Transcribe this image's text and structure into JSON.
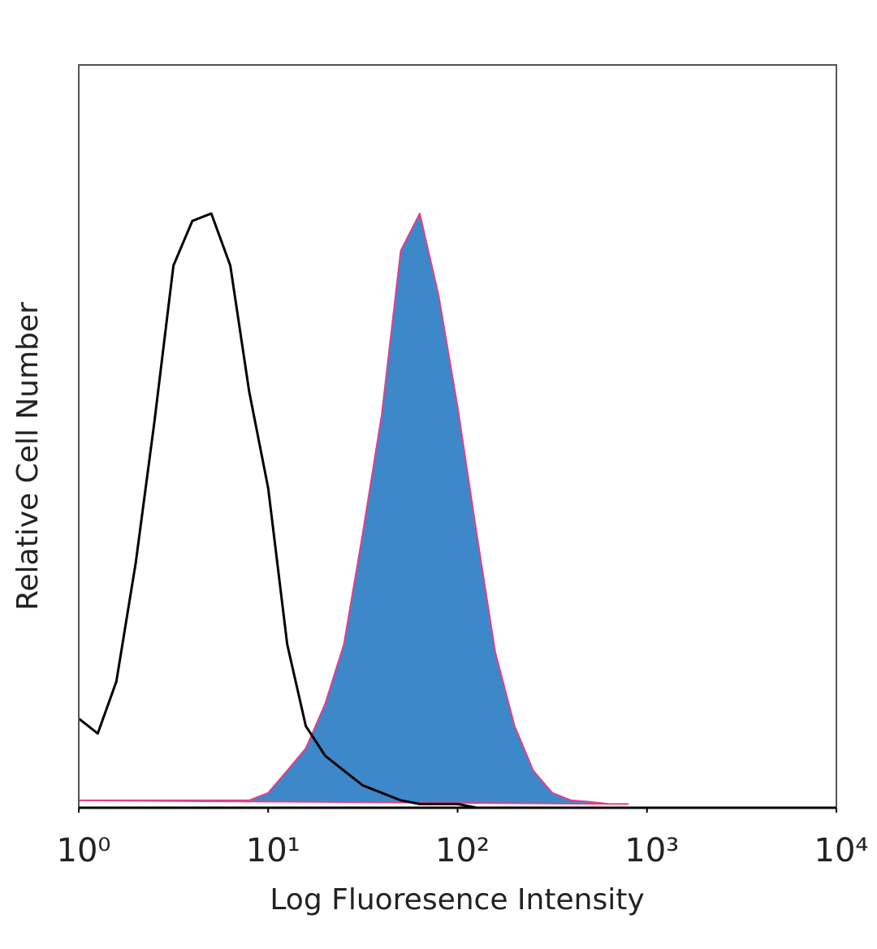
{
  "chart_data": {
    "type": "histogram-line",
    "xlabel": "Log Fluoresence Intensity",
    "ylabel": "Relative Cell Number",
    "xscale": "log",
    "xlim": [
      1,
      10000
    ],
    "xticks": [
      {
        "value": 1,
        "label": "10⁰"
      },
      {
        "value": 10,
        "label": "10¹"
      },
      {
        "value": 100,
        "label": "10²"
      },
      {
        "value": 1000,
        "label": "10³"
      },
      {
        "value": 10000,
        "label": "10⁴"
      }
    ],
    "ylim": [
      0,
      100
    ],
    "grid": false,
    "x": [
      1,
      1.26,
      1.58,
      2,
      2.51,
      3.16,
      3.98,
      5.01,
      6.31,
      7.94,
      10,
      12.6,
      15.8,
      20,
      25.1,
      31.6,
      39.8,
      50.1,
      63.1,
      79.4,
      100,
      126,
      158,
      200,
      251,
      316,
      398,
      501,
      631,
      794
    ],
    "series": [
      {
        "color": "#e0408a",
        "fill": "#3d88c9",
        "values": [
          1,
          1,
          1,
          1,
          1,
          1,
          1,
          1,
          1,
          1,
          2,
          5,
          8,
          14,
          22,
          37,
          53,
          75,
          80,
          69,
          54,
          37,
          21,
          11,
          5,
          2,
          1,
          0.8,
          0.5,
          0.5
        ]
      },
      {
        "color": "#000000",
        "values": [
          12,
          10,
          17,
          33,
          52,
          73,
          79,
          80,
          73,
          56,
          43,
          22,
          11,
          7,
          5,
          3,
          2,
          1,
          0.5,
          0.5,
          0.5,
          0,
          null,
          null,
          null,
          null,
          null,
          null,
          null,
          null
        ]
      }
    ]
  }
}
